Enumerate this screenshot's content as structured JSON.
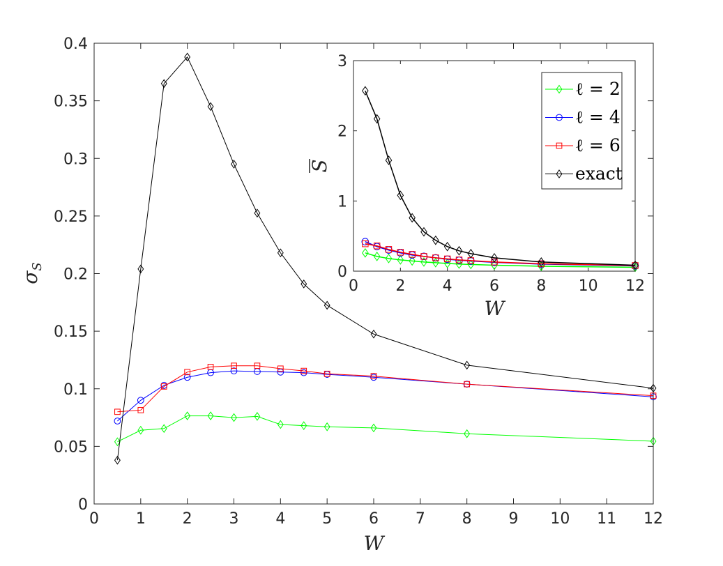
{
  "chart_data": [
    {
      "type": "line",
      "xlabel": "W",
      "ylabel": "σ",
      "ylabel_sub": "S",
      "xlim": [
        0,
        12
      ],
      "ylim": [
        0,
        0.4
      ],
      "xticks": [
        "0",
        "1",
        "2",
        "3",
        "4",
        "5",
        "6",
        "7",
        "8",
        "9",
        "10",
        "11",
        "12"
      ],
      "yticks": [
        "0",
        "0.05",
        "0.1",
        "0.15",
        "0.2",
        "0.25",
        "0.3",
        "0.35",
        "0.4"
      ],
      "series": [
        {
          "name": "ℓ = 2",
          "color": "#00ff00",
          "marker": "diamond",
          "x": [
            0.5,
            1,
            1.5,
            2,
            2.5,
            3,
            3.5,
            4,
            4.5,
            5,
            6,
            8,
            12
          ],
          "y": [
            0.054,
            0.064,
            0.0655,
            0.0765,
            0.0765,
            0.075,
            0.076,
            0.069,
            0.068,
            0.067,
            0.066,
            0.061,
            0.0545
          ]
        },
        {
          "name": "ℓ = 4",
          "color": "#0000ff",
          "marker": "circle",
          "x": [
            0.5,
            1,
            1.5,
            2,
            2.5,
            3,
            3.5,
            4,
            4.5,
            5,
            6,
            8,
            12
          ],
          "y": [
            0.072,
            0.09,
            0.103,
            0.11,
            0.114,
            0.1155,
            0.115,
            0.1145,
            0.114,
            0.1125,
            0.11,
            0.104,
            0.093
          ]
        },
        {
          "name": "ℓ = 6",
          "color": "#ff0000",
          "marker": "square",
          "x": [
            0.5,
            1,
            1.5,
            2,
            2.5,
            3,
            3.5,
            4,
            4.5,
            5,
            6,
            8,
            12
          ],
          "y": [
            0.08,
            0.0815,
            0.102,
            0.1145,
            0.119,
            0.12,
            0.12,
            0.1175,
            0.1155,
            0.113,
            0.111,
            0.104,
            0.094
          ]
        },
        {
          "name": "exact",
          "color": "#000000",
          "marker": "diamond",
          "x": [
            0.5,
            1,
            1.5,
            2,
            2.5,
            3,
            3.5,
            4,
            4.5,
            5,
            6,
            8,
            12
          ],
          "y": [
            0.038,
            0.204,
            0.365,
            0.388,
            0.345,
            0.295,
            0.2525,
            0.218,
            0.191,
            0.1725,
            0.1475,
            0.1205,
            0.1005
          ]
        }
      ]
    },
    {
      "type": "line",
      "xlabel": "W",
      "ylabel": "S",
      "xlim": [
        0,
        12
      ],
      "ylim": [
        0,
        3
      ],
      "xticks": [
        "0",
        "2",
        "4",
        "6",
        "8",
        "10",
        "12"
      ],
      "yticks": [
        "0",
        "1",
        "2",
        "3"
      ],
      "legend": "top-right",
      "series": [
        {
          "name": "ℓ = 2",
          "color": "#00ff00",
          "marker": "diamond",
          "x": [
            0.5,
            1,
            1.5,
            2,
            2.5,
            3,
            3.5,
            4,
            4.5,
            5,
            6,
            8,
            12
          ],
          "y": [
            0.26,
            0.21,
            0.18,
            0.16,
            0.145,
            0.13,
            0.12,
            0.11,
            0.1,
            0.095,
            0.085,
            0.07,
            0.055
          ]
        },
        {
          "name": "ℓ = 4",
          "color": "#0000ff",
          "marker": "circle",
          "x": [
            0.5,
            1,
            1.5,
            2,
            2.5,
            3,
            3.5,
            4,
            4.5,
            5,
            6,
            8,
            12
          ],
          "y": [
            0.42,
            0.35,
            0.3,
            0.26,
            0.23,
            0.21,
            0.19,
            0.17,
            0.155,
            0.145,
            0.125,
            0.1,
            0.075
          ]
        },
        {
          "name": "ℓ = 6",
          "color": "#ff0000",
          "marker": "square",
          "x": [
            0.5,
            1,
            1.5,
            2,
            2.5,
            3,
            3.5,
            4,
            4.5,
            5,
            6,
            8,
            12
          ],
          "y": [
            0.39,
            0.36,
            0.31,
            0.27,
            0.24,
            0.21,
            0.19,
            0.175,
            0.16,
            0.15,
            0.13,
            0.105,
            0.08
          ]
        },
        {
          "name": "exact",
          "color": "#000000",
          "marker": "diamond",
          "x": [
            0.5,
            1,
            1.5,
            2,
            2.5,
            3,
            3.5,
            4,
            4.5,
            5,
            6,
            8,
            12
          ],
          "y": [
            2.57,
            2.17,
            1.58,
            1.08,
            0.76,
            0.56,
            0.44,
            0.35,
            0.29,
            0.25,
            0.19,
            0.13,
            0.085
          ]
        }
      ]
    }
  ]
}
